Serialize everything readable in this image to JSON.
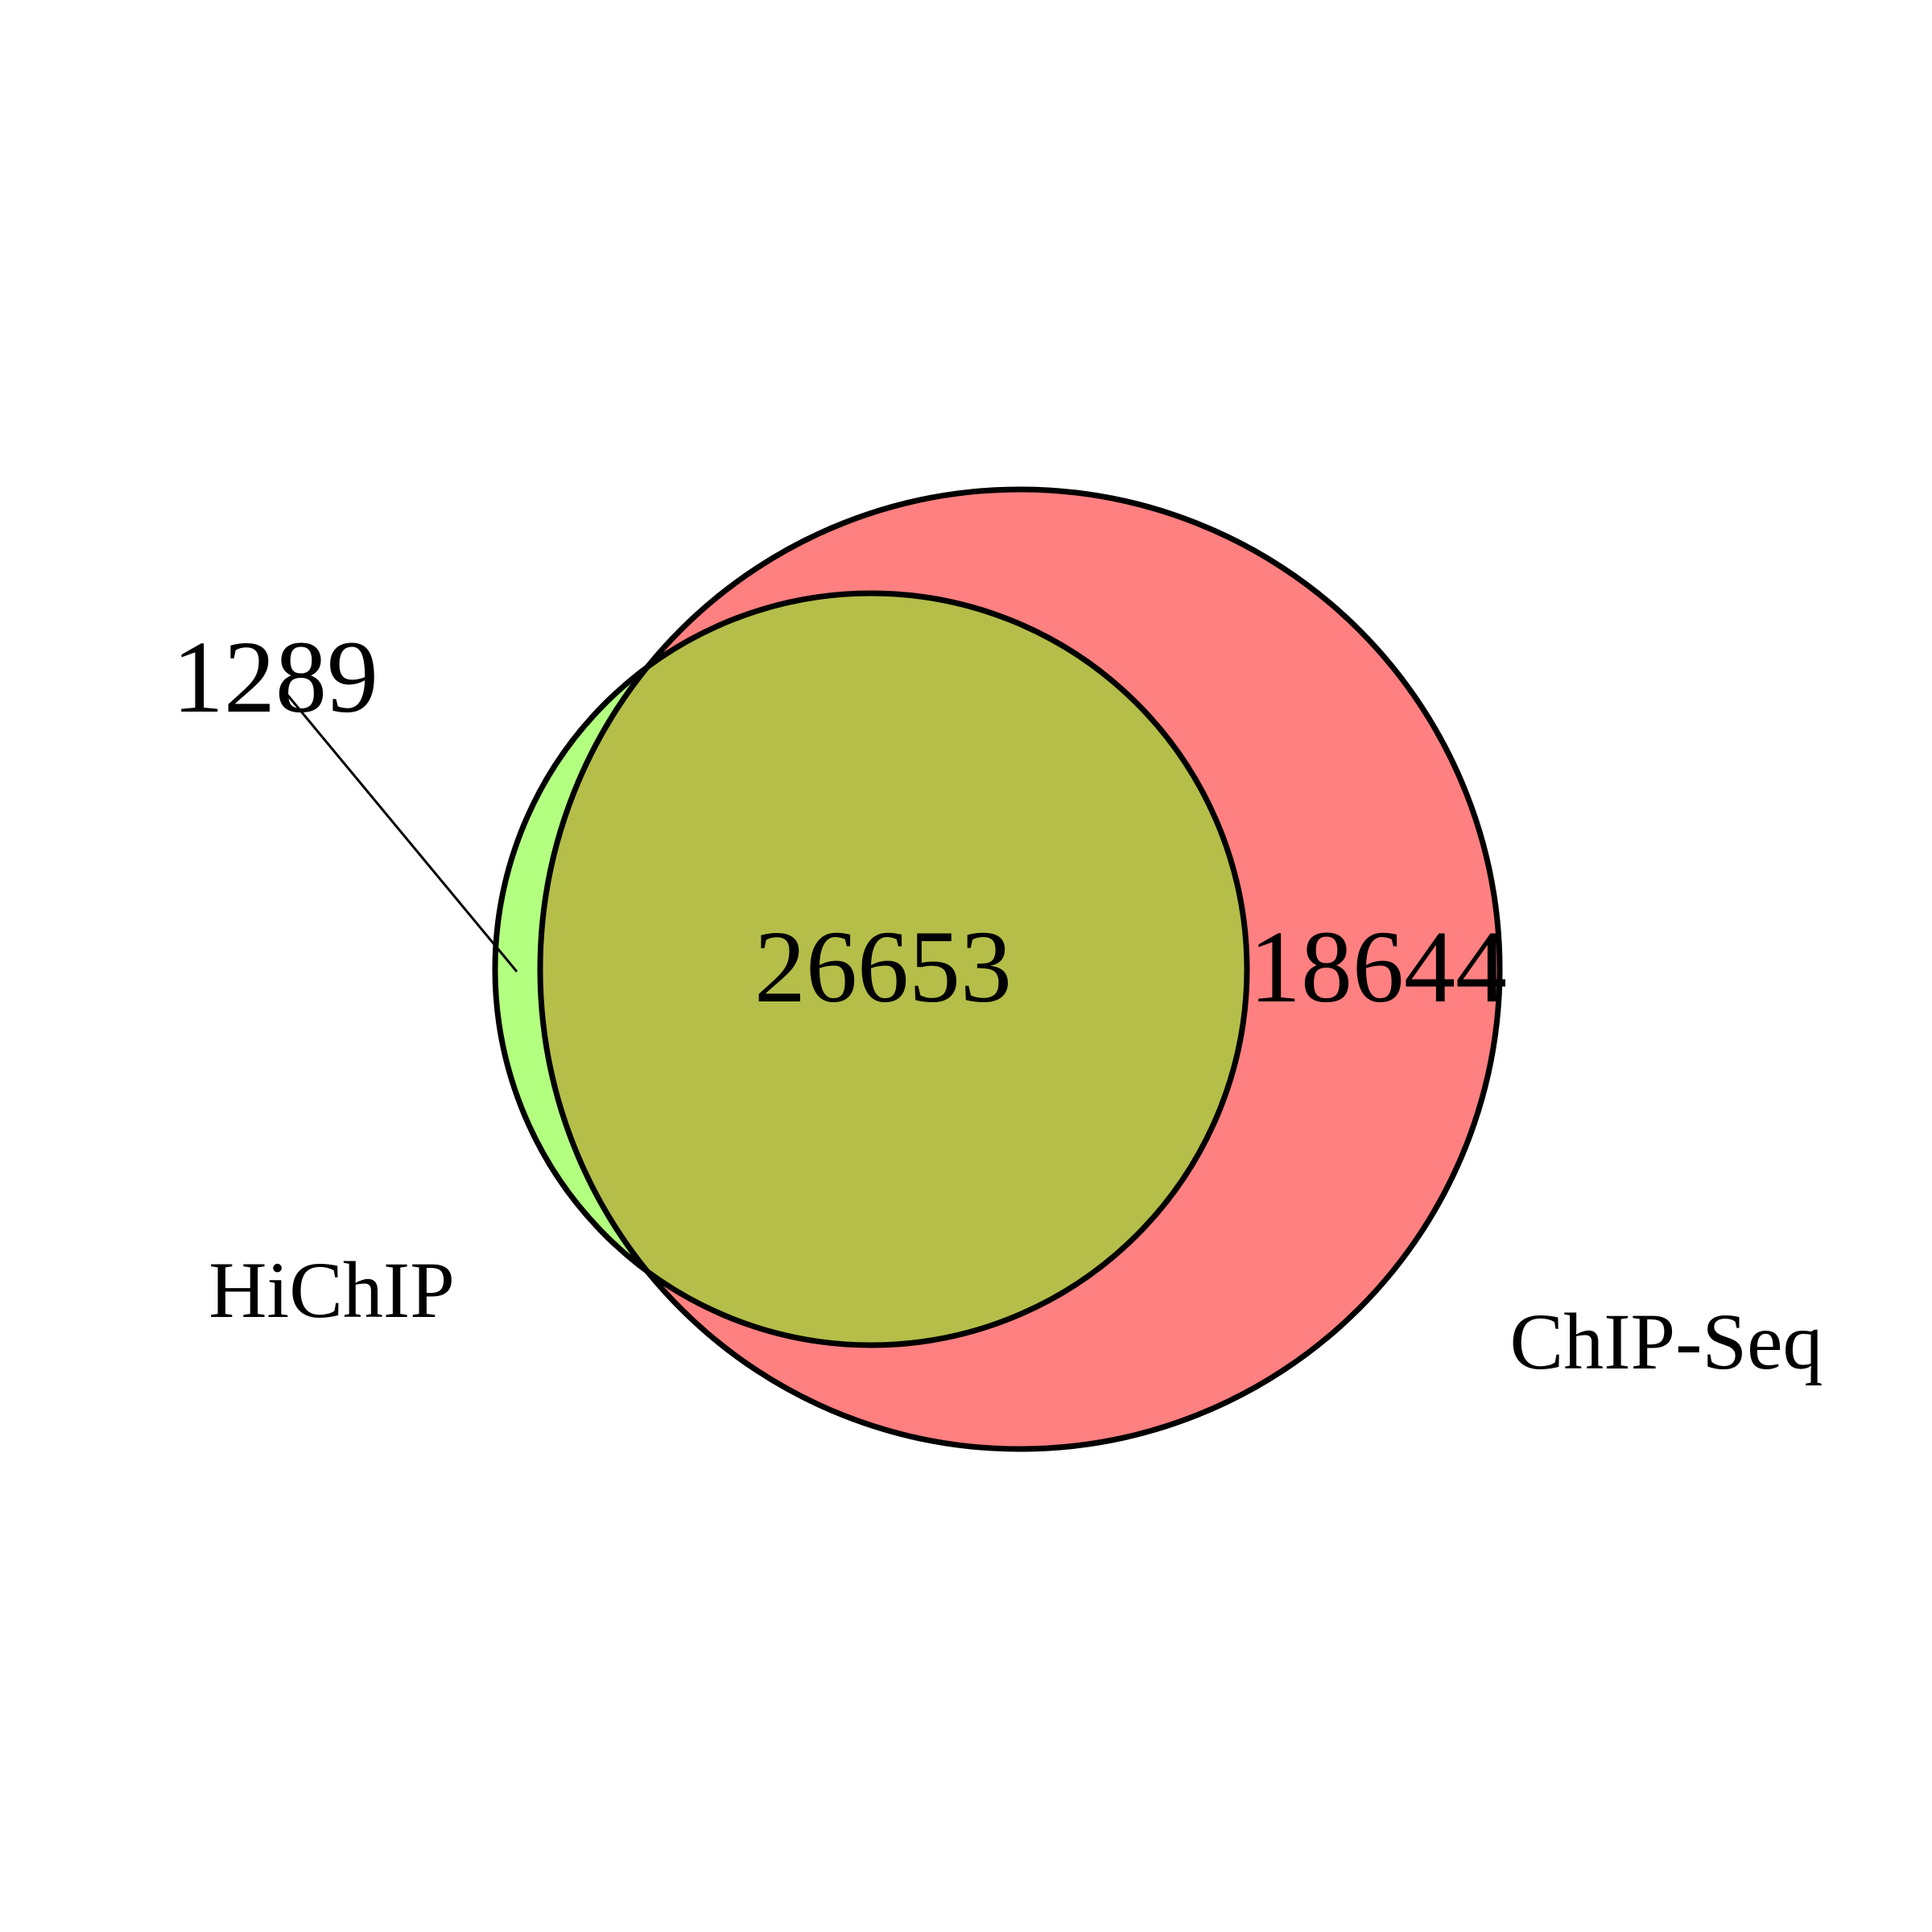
{
  "diagram": {
    "type": "venn",
    "sets": [
      {
        "name": "HiChIP",
        "color": "#b3ff80"
      },
      {
        "name": "ChIP-Seq",
        "color": "#ff8080"
      }
    ],
    "overlap_color": "#b5be49",
    "outline_color": "#000000",
    "counts": {
      "hichip_only": "1289",
      "both": "26653",
      "chipseq_only": "18644"
    }
  }
}
